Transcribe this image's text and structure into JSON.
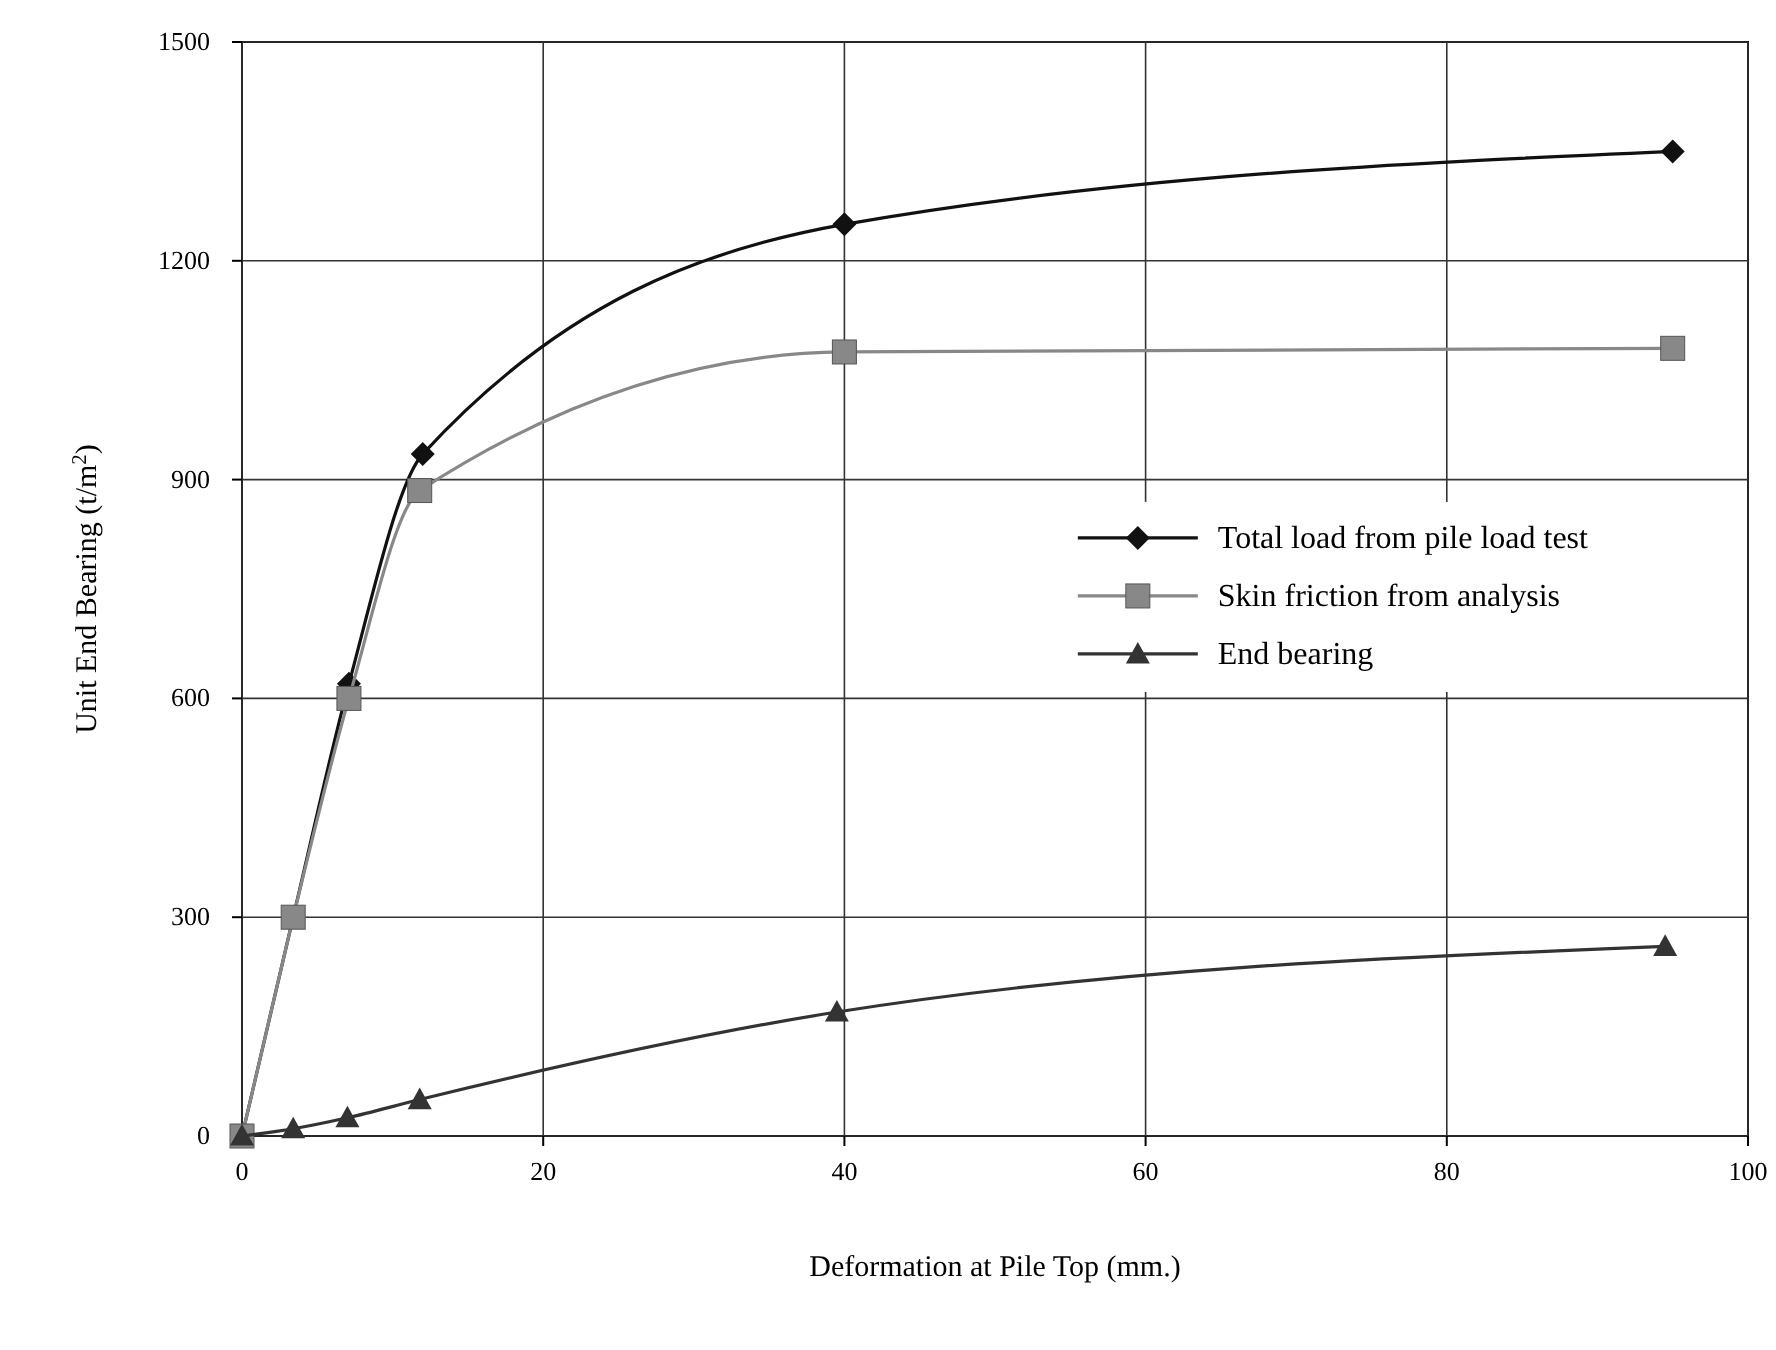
{
  "chart_data": {
    "type": "line",
    "xlabel": "Deformation at Pile Top (mm.)",
    "ylabel": "Unit End Bearing (t/m$^{2}$)",
    "xlim": [
      0,
      100
    ],
    "xticks": [
      0,
      20,
      40,
      60,
      80,
      100
    ],
    "ylim": [
      0,
      1500
    ],
    "yticks": [
      0,
      300,
      600,
      900,
      1200,
      1500
    ],
    "grid": true,
    "legend": "right",
    "series": [
      {
        "name": "Total load from pile load test",
        "color": "#111111",
        "marker": "diamond",
        "x": [
          0,
          3.4,
          7.1,
          12,
          40,
          95
        ],
        "values": [
          0,
          300,
          620,
          935,
          1250,
          1350
        ]
      },
      {
        "name": "Skin friction from analysis",
        "color": "#888888",
        "marker": "square",
        "x": [
          0,
          3.4,
          7.1,
          11.8,
          40,
          95
        ],
        "values": [
          0,
          300,
          600,
          885,
          1075,
          1080
        ]
      },
      {
        "name": "End bearing",
        "color": "#333333",
        "marker": "triangle",
        "x": [
          0,
          3.4,
          7,
          11.8,
          39.5,
          94.5
        ],
        "values": [
          0,
          10,
          25,
          50,
          170,
          260
        ]
      }
    ]
  }
}
